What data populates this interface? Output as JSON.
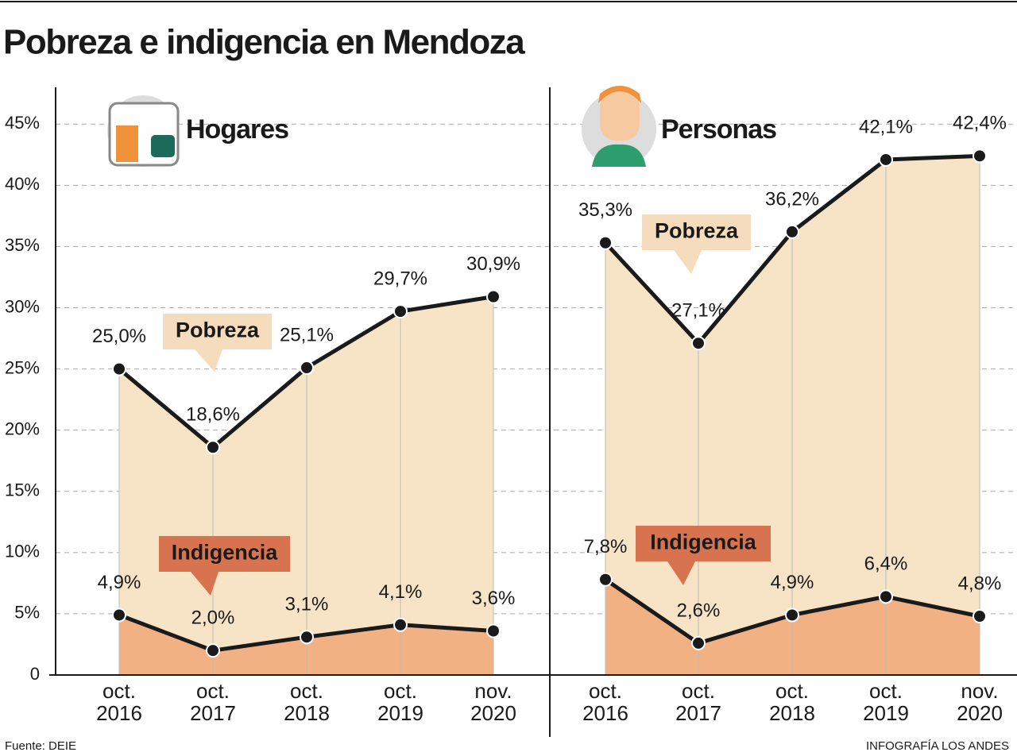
{
  "title": "Pobreza e indigencia en Mendoza",
  "source": "Fuente: DEIE",
  "credit": "INFOGRAFÍA LOS ANDES",
  "chart_data": [
    {
      "type": "area",
      "title": "Hogares",
      "categories": [
        "oct. 2016",
        "oct. 2017",
        "oct. 2018",
        "oct. 2019",
        "nov. 2020"
      ],
      "series": [
        {
          "name": "Pobreza",
          "color": "#f7e3c6",
          "values": [
            25.0,
            18.6,
            25.1,
            29.7,
            30.9
          ],
          "value_labels": [
            "25,0%",
            "18,6%",
            "25,1%",
            "29,7%",
            "30,9%"
          ]
        },
        {
          "name": "Indigencia",
          "color": "#f2b183",
          "values": [
            4.9,
            2.0,
            3.1,
            4.1,
            3.6
          ],
          "value_labels": [
            "4,9%",
            "2,0%",
            "3,1%",
            "4,1%",
            "3,6%"
          ]
        }
      ],
      "ylim": [
        0,
        48
      ],
      "yticks": [
        0,
        {
          "value": 5,
          "label": "5%"
        },
        {
          "value": 10,
          "label": "10%"
        },
        {
          "value": 15,
          "label": "15%"
        },
        {
          "value": 20,
          "label": "20%"
        },
        {
          "value": 25,
          "label": "25%"
        },
        {
          "value": 30,
          "label": "30%"
        },
        {
          "value": 35,
          "label": "35%"
        },
        {
          "value": 40,
          "label": "40%"
        },
        {
          "value": 45,
          "label": "45%"
        }
      ],
      "grid": true,
      "line_color": "#1a1a1a"
    },
    {
      "type": "area",
      "title": "Personas",
      "categories": [
        "oct. 2016",
        "oct. 2017",
        "oct. 2018",
        "oct. 2019",
        "nov. 2020"
      ],
      "series": [
        {
          "name": "Pobreza",
          "color": "#f7e3c6",
          "values": [
            35.3,
            27.1,
            36.2,
            42.1,
            42.4
          ],
          "value_labels": [
            "35,3%",
            "27,1%",
            "36,2%",
            "42,1%",
            "42,4%"
          ]
        },
        {
          "name": "Indigencia",
          "color": "#f2b183",
          "values": [
            7.8,
            2.6,
            4.9,
            6.4,
            4.8
          ],
          "value_labels": [
            "7,8%",
            "2,6%",
            "4,9%",
            "6,4%",
            "4,8%"
          ]
        }
      ],
      "ylim": [
        0,
        48
      ],
      "line_color": "#1a1a1a"
    }
  ]
}
